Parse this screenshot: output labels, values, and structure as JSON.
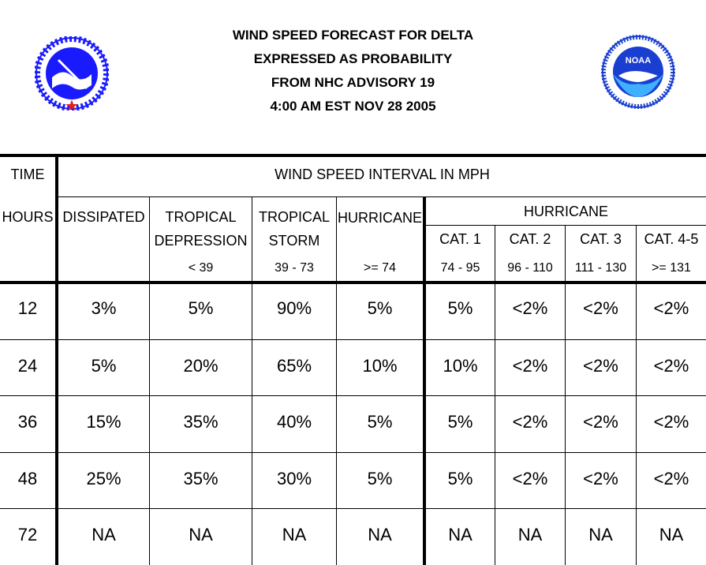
{
  "title": {
    "line1": "WIND SPEED FORECAST FOR DELTA",
    "line2": "EXPRESSED AS PROBABILITY",
    "line3": "FROM NHC ADVISORY   19",
    "line4": "4:00 AM EST NOV 28 2005"
  },
  "logos": {
    "left": {
      "icon": "national-weather-service-logo",
      "color": "#1a1aff",
      "accent": "#e02020"
    },
    "right": {
      "icon": "noaa-logo",
      "color": "#1a3fd0",
      "accent": "#3fb0ff",
      "text": "NOAA"
    }
  },
  "table": {
    "time_header": "TIME",
    "interval_header": "WIND SPEED INTERVAL IN MPH",
    "hours_header": "HOURS",
    "columns": {
      "dissipated": "DISSIPATED",
      "tropical_depression_1": "TROPICAL",
      "tropical_depression_2": "DEPRESSION",
      "tropical_depression_range": "< 39",
      "tropical_storm_1": "TROPICAL",
      "tropical_storm_2": "STORM",
      "tropical_storm_range": "39 - 73",
      "hurricane": "HURRICANE",
      "hurricane_range": ">= 74",
      "hurricane_group": "HURRICANE",
      "cat1": "CAT. 1",
      "cat1_range": "74 - 95",
      "cat2": "CAT. 2",
      "cat2_range": "96 - 110",
      "cat3": "CAT. 3",
      "cat3_range": "111 - 130",
      "cat45": "CAT. 4-5",
      "cat45_range": ">= 131"
    },
    "rows": [
      {
        "hours": "12",
        "values": [
          "3%",
          "5%",
          "90%",
          "5%",
          "5%",
          "<2%",
          "<2%",
          "<2%"
        ]
      },
      {
        "hours": "24",
        "values": [
          "5%",
          "20%",
          "65%",
          "10%",
          "10%",
          "<2%",
          "<2%",
          "<2%"
        ]
      },
      {
        "hours": "36",
        "values": [
          "15%",
          "35%",
          "40%",
          "5%",
          "5%",
          "<2%",
          "<2%",
          "<2%"
        ]
      },
      {
        "hours": "48",
        "values": [
          "25%",
          "35%",
          "30%",
          "5%",
          "5%",
          "<2%",
          "<2%",
          "<2%"
        ]
      },
      {
        "hours": "72",
        "values": [
          "NA",
          "NA",
          "NA",
          "NA",
          "NA",
          "NA",
          "NA",
          "NA"
        ]
      }
    ]
  }
}
